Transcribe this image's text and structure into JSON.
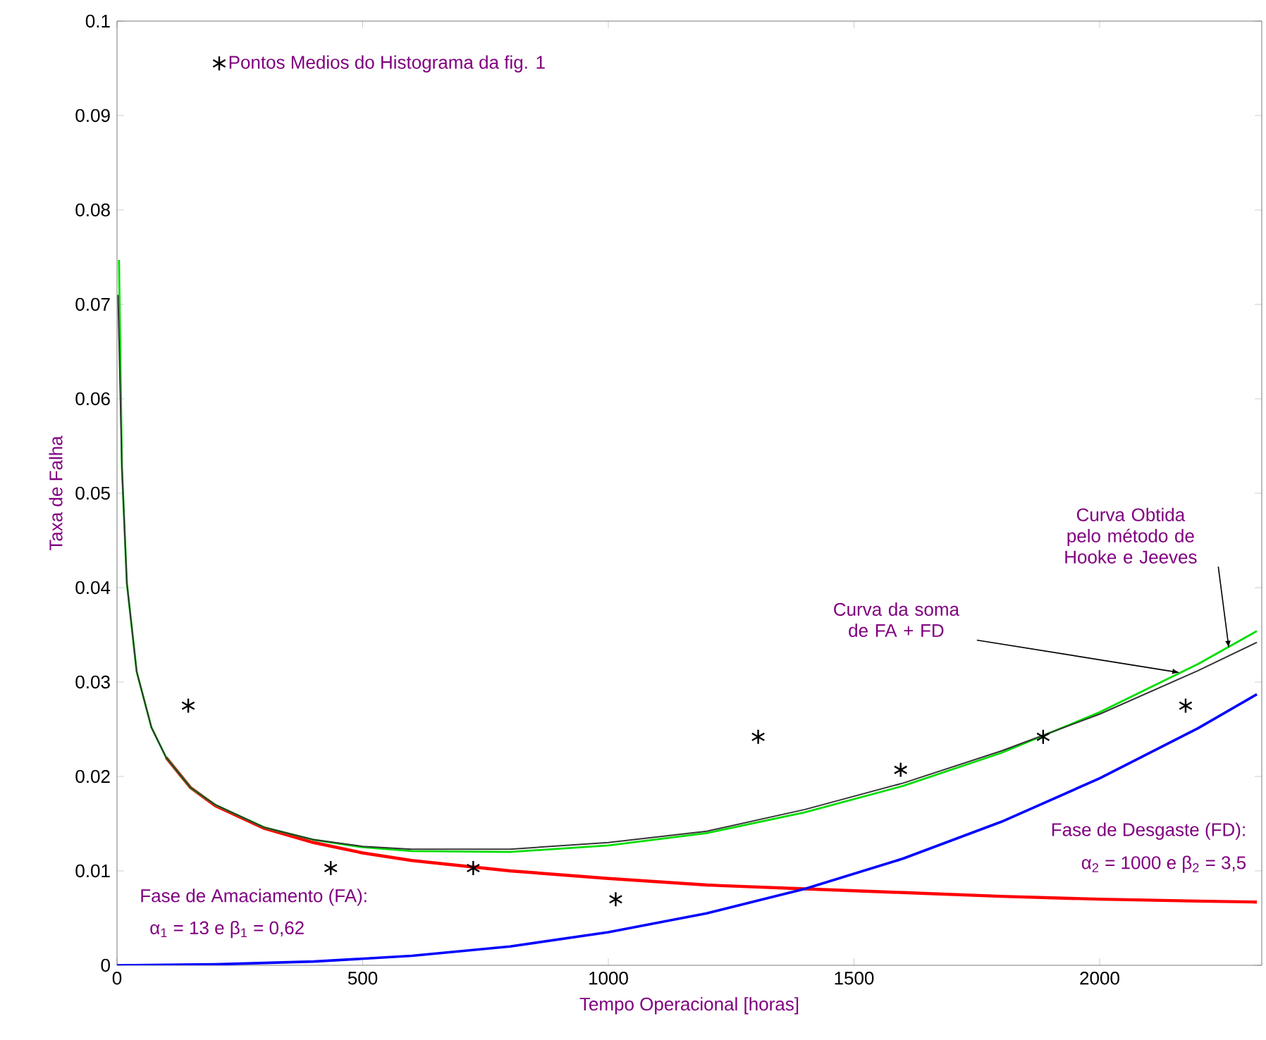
{
  "chart_data": {
    "type": "line",
    "xlabel": "Tempo Operacional [horas]",
    "ylabel": "Taxa de Falha",
    "xlim": [
      0,
      2330
    ],
    "ylim": [
      0,
      0.1
    ],
    "xticks": [
      0,
      500,
      1000,
      1500,
      2000
    ],
    "yticks": [
      0,
      0.01,
      0.02,
      0.03,
      0.04,
      0.05,
      0.06,
      0.07,
      0.08,
      0.09,
      0.1
    ],
    "grid": false,
    "legend": "top left",
    "line_style": "solid",
    "series": [
      {
        "name": "Pontos Medios do Histograma da fig. 1",
        "type": "scatter",
        "marker": "cross",
        "color": "#000000",
        "x": [
          145,
          435,
          725,
          1015,
          1305,
          1595,
          1885,
          2175
        ],
        "values": [
          0.0275,
          0.0103,
          0.0103,
          0.007,
          0.0242,
          0.0207,
          0.0242,
          0.0275
        ]
      },
      {
        "color": "#ff0000",
        "x": [
          100,
          150,
          200,
          300,
          400,
          500,
          600,
          800,
          1000,
          1200,
          1400,
          1600,
          1800,
          2000,
          2200,
          2320
        ],
        "values": [
          0.022,
          0.0188,
          0.0169,
          0.0145,
          0.013,
          0.0119,
          0.0111,
          0.01,
          0.0092,
          0.0085,
          0.0081,
          0.0077,
          0.0073,
          0.007,
          0.0068,
          0.0067
        ]
      },
      {
        "color": "#0000ff",
        "x": [
          0,
          200,
          400,
          600,
          800,
          1000,
          1200,
          1400,
          1600,
          1800,
          2000,
          2200,
          2320
        ],
        "values": [
          0,
          0.0001,
          0.0004,
          0.001,
          0.002,
          0.0035,
          0.0055,
          0.0081,
          0.0113,
          0.0152,
          0.0198,
          0.0251,
          0.0287
        ]
      },
      {
        "color": "#00dd00",
        "x": [
          4,
          10,
          20,
          40,
          70,
          100,
          150,
          200,
          300,
          400,
          500,
          600,
          800,
          1000,
          1200,
          1400,
          1600,
          1800,
          2000,
          2200,
          2320
        ],
        "values": [
          0.0747,
          0.0527,
          0.0405,
          0.0311,
          0.0252,
          0.022,
          0.0188,
          0.017,
          0.0146,
          0.0133,
          0.0125,
          0.0121,
          0.012,
          0.0127,
          0.014,
          0.0162,
          0.019,
          0.0225,
          0.0268,
          0.0319,
          0.0354
        ]
      },
      {
        "color": "#333333",
        "x": [
          2,
          10,
          20,
          40,
          70,
          100,
          150,
          200,
          300,
          400,
          500,
          600,
          800,
          1000,
          1200,
          1400,
          1600,
          1800,
          2000,
          2200,
          2320
        ],
        "values": [
          0.071,
          0.0527,
          0.0405,
          0.0311,
          0.0252,
          0.022,
          0.0188,
          0.017,
          0.0146,
          0.0133,
          0.0126,
          0.0123,
          0.0123,
          0.013,
          0.0142,
          0.0165,
          0.0193,
          0.0227,
          0.0266,
          0.0312,
          0.0342
        ]
      }
    ],
    "annotations": [
      {
        "text": "Curva Obtida pelo método de Hooke e Jeeves",
        "x": 2263,
        "y": 0.0336
      },
      {
        "text": "Curva da soma de FA + FD",
        "x": 2163,
        "y": 0.031
      },
      "Fase de Amaciamento (FA):",
      "α$_{1}$ = 13 e β$_{1}$ = 0,62",
      "Fase de Desgaste (FD):",
      "α$_{2}$ = 1000 e β$_{2}$ = 3,5"
    ]
  }
}
